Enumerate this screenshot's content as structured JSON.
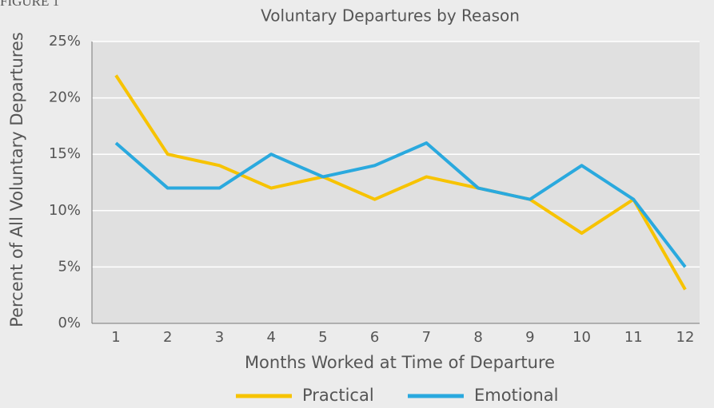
{
  "chart_data": {
    "type": "line",
    "figure_label": "FIGURE 1",
    "title": "Voluntary Departures by Reason",
    "x_label": "Months Worked at Time of Departure",
    "y_label": "Percent of All Voluntary Departures",
    "categories": [
      "1",
      "2",
      "3",
      "4",
      "5",
      "6",
      "7",
      "8",
      "9",
      "10",
      "11",
      "12"
    ],
    "series": [
      {
        "name": "Practical",
        "color": "#f7c300",
        "values": [
          22,
          15,
          14,
          12,
          13,
          11,
          13,
          12,
          11,
          8,
          11,
          3
        ]
      },
      {
        "name": "Emotional",
        "color": "#2aa9de",
        "values": [
          16,
          12,
          12,
          15,
          13,
          14,
          16,
          12,
          11,
          14,
          11,
          5
        ]
      }
    ],
    "ylim": [
      0,
      25
    ],
    "yticks": [
      {
        "value": 0,
        "label": "0%"
      },
      {
        "value": 5,
        "label": "5%"
      },
      {
        "value": 10,
        "label": "10%"
      },
      {
        "value": 15,
        "label": "15%"
      },
      {
        "value": 20,
        "label": "20%"
      },
      {
        "value": 25,
        "label": "25%"
      }
    ],
    "grid": true,
    "legend": "bottom"
  }
}
